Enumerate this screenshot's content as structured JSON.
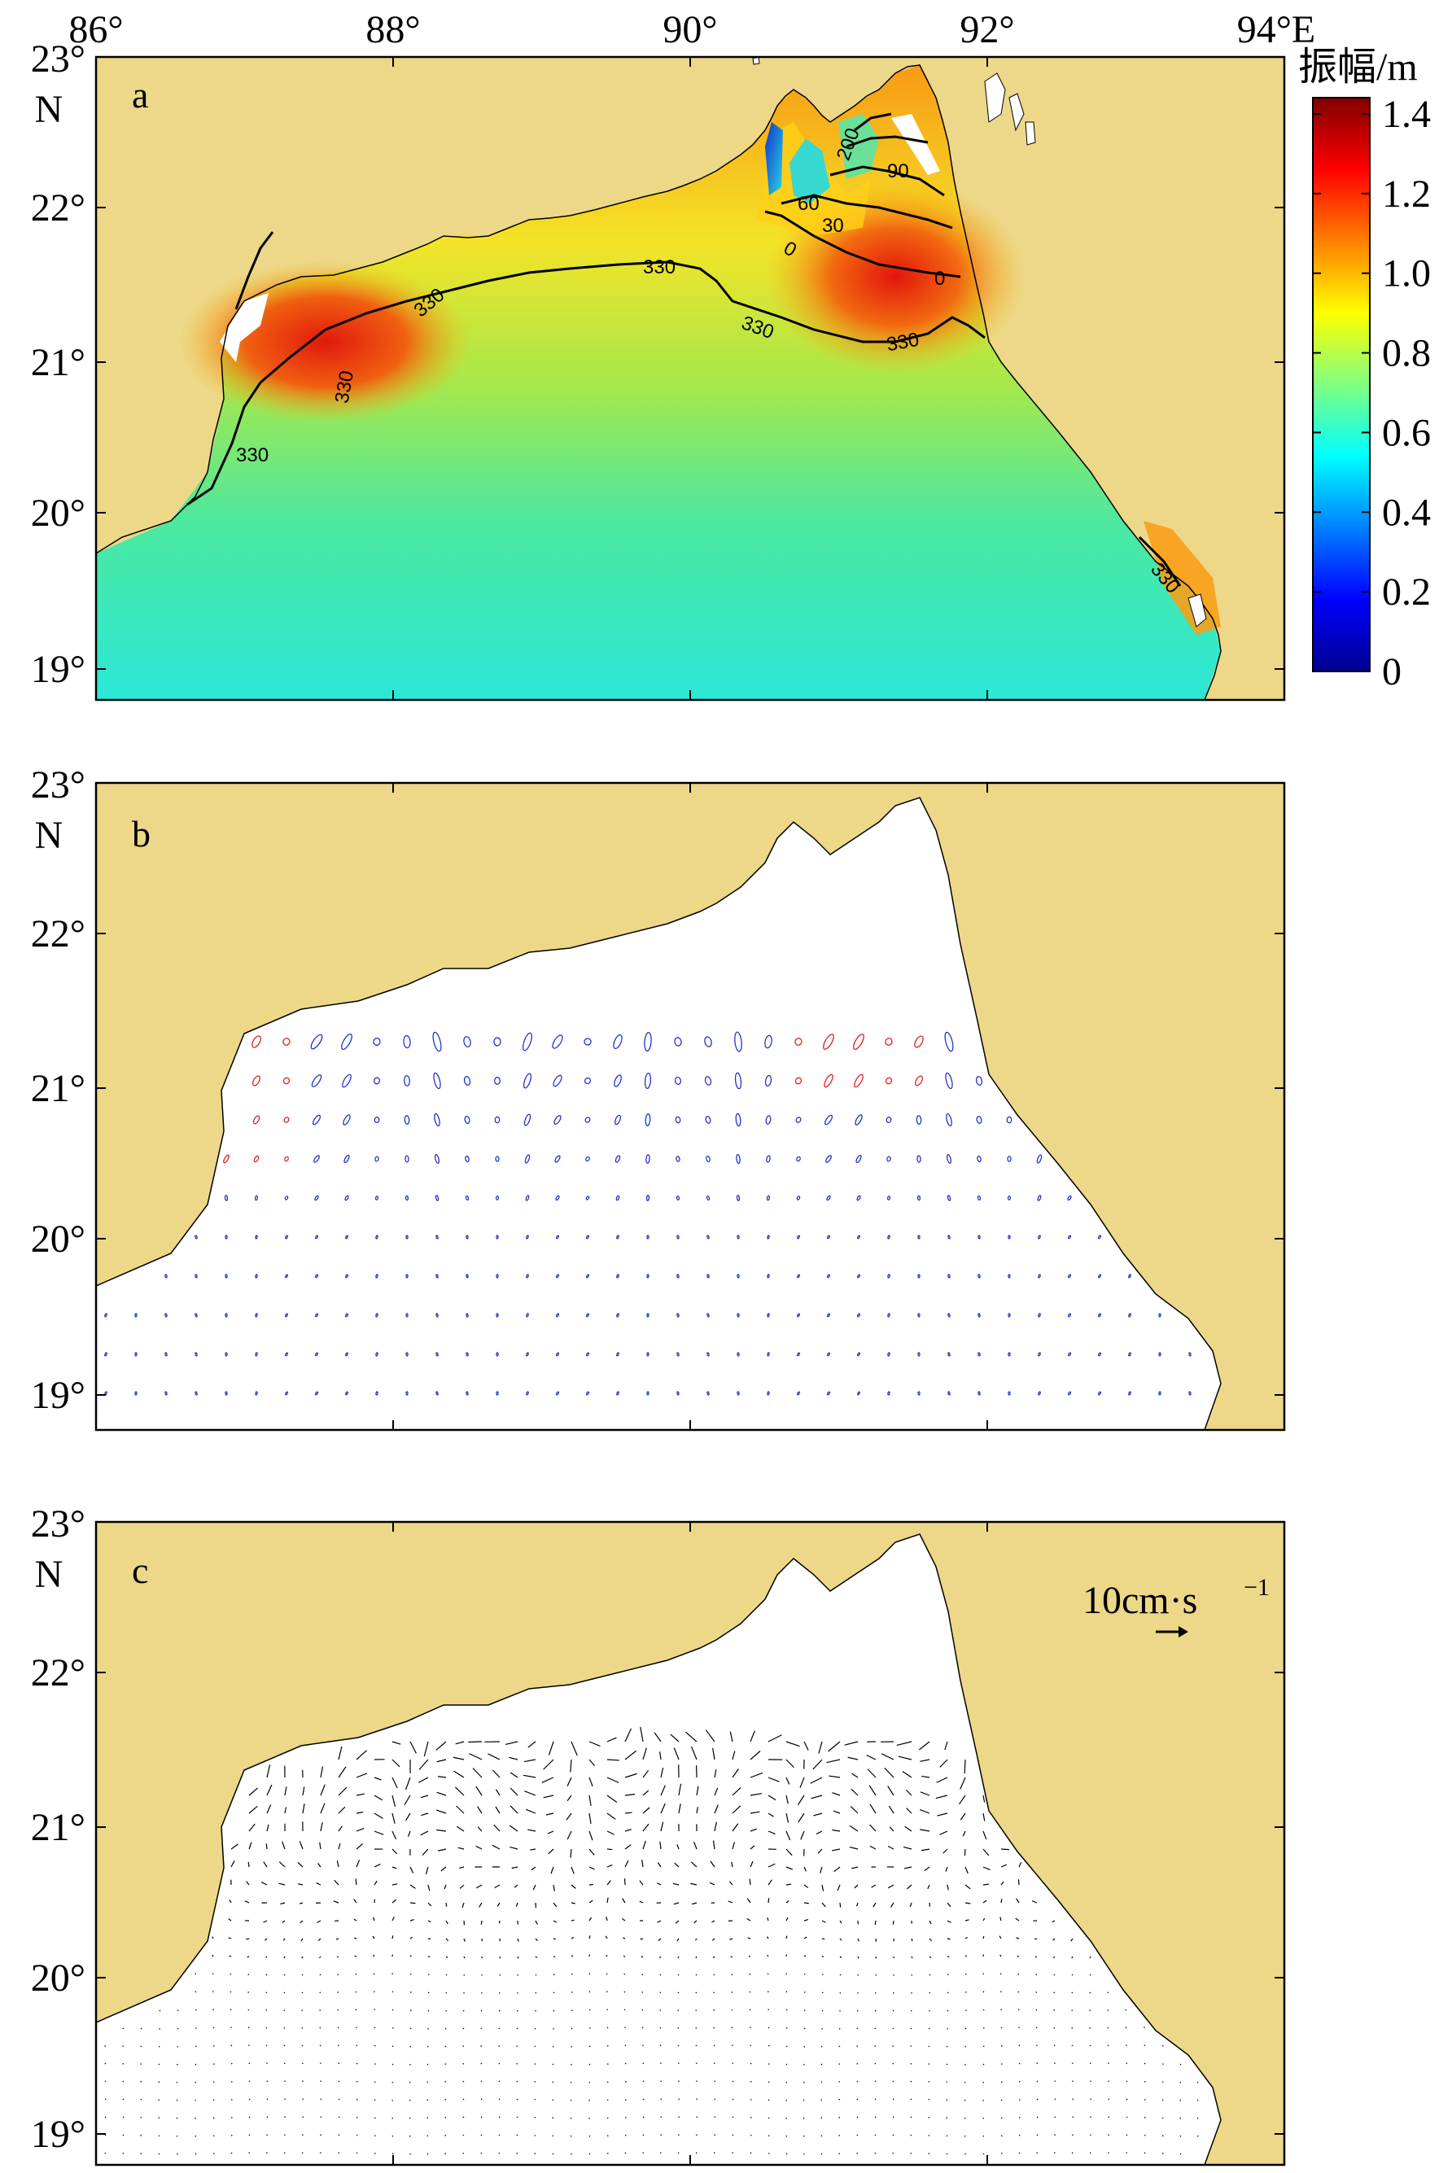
{
  "colors": {
    "land": "#ecd888",
    "sea_white": "#ffffff",
    "coast": "#000000",
    "ellipse_cw": "#2233cc",
    "ellipse_ccw": "#dd2222",
    "arrow": "#000000"
  },
  "x_ticks": [
    "86°",
    "88°",
    "90°",
    "92°",
    "94°E"
  ],
  "y_ticks": [
    "23°",
    "22°",
    "21°",
    "20°",
    "19°"
  ],
  "y_axis_unit": "N",
  "panels": [
    {
      "letter": "a"
    },
    {
      "letter": "b"
    },
    {
      "letter": "c"
    }
  ],
  "colorbar": {
    "title": "振幅/m",
    "ticks": [
      "1.4",
      "1.2",
      "1.0",
      "0.8",
      "0.6",
      "0.4",
      "0.2",
      "0"
    ]
  },
  "contours": [
    "330",
    "330",
    "330",
    "330",
    "330",
    "330",
    "330",
    "0",
    "0",
    "30",
    "60",
    "90",
    "200"
  ],
  "vector_scale": {
    "label": "10cm·s",
    "exponent": "−1"
  }
}
